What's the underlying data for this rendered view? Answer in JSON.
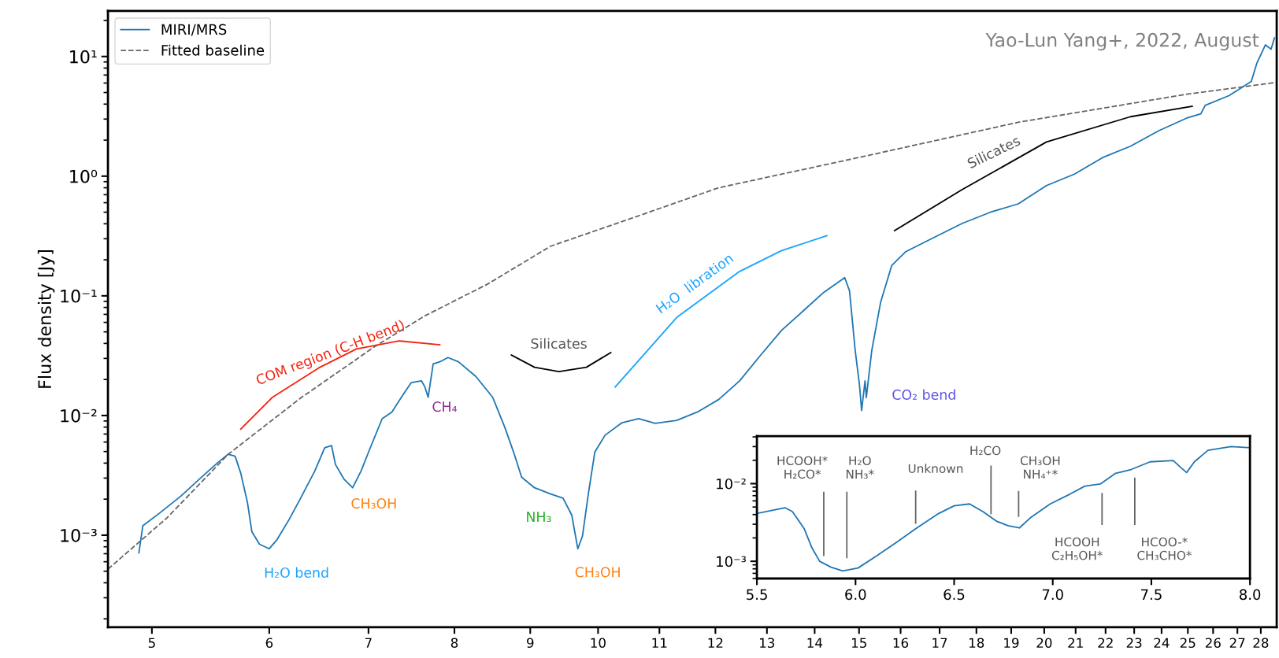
{
  "chart_data": [
    {
      "type": "line",
      "ylabel": "Flux density [Jy]",
      "log": "xy",
      "xlim": [
        4.67,
        28.7
      ],
      "ylim": [
        0.00017,
        24
      ],
      "xticks": [
        5,
        6,
        7,
        8,
        9,
        10,
        11,
        12,
        13,
        14,
        15,
        16,
        17,
        18,
        19,
        20,
        21,
        22,
        23,
        24,
        25,
        26,
        27,
        28
      ],
      "yticks": [
        {
          "value": 0.001,
          "label": "10⁻³"
        },
        {
          "value": 0.01,
          "label": "10⁻²"
        },
        {
          "value": 0.1,
          "label": "10⁻¹"
        },
        {
          "value": 1,
          "label": "10⁰"
        },
        {
          "value": 10,
          "label": "10¹"
        }
      ],
      "grid": false,
      "legend": "top left",
      "series": [
        {
          "name": "MIRI/MRS",
          "color": "#1f77b4",
          "x": [
            4.9,
            4.93,
            5.06,
            5.23,
            5.4,
            5.54,
            5.63,
            5.69,
            5.74,
            5.8,
            5.84,
            5.91,
            6.0,
            6.07,
            6.19,
            6.31,
            6.44,
            6.54,
            6.61,
            6.65,
            6.74,
            6.83,
            6.92,
            7.01,
            7.15,
            7.26,
            7.38,
            7.48,
            7.6,
            7.64,
            7.68,
            7.74,
            7.82,
            7.92,
            8.05,
            8.27,
            8.49,
            8.65,
            8.77,
            8.88,
            9.06,
            9.29,
            9.47,
            9.6,
            9.69,
            9.76,
            9.85,
            9.95,
            10.11,
            10.38,
            10.65,
            10.93,
            11.3,
            11.67,
            12.06,
            12.46,
            12.87,
            13.3,
            13.74,
            14.2,
            14.67,
            14.78,
            14.91,
            15.01,
            15.06,
            15.14,
            15.17,
            15.3,
            15.51,
            15.78,
            16.13,
            16.85,
            17.6,
            18.39,
            19.21,
            20.07,
            20.96,
            21.9,
            22.87,
            23.9,
            24.96,
            25.51,
            25.68,
            26.65,
            27.59,
            27.83,
            28.2,
            28.45,
            28.6
          ],
          "values": [
            0.00071,
            0.0012,
            0.00153,
            0.00212,
            0.00305,
            0.00405,
            0.00475,
            0.00457,
            0.0033,
            0.00188,
            0.00107,
            0.00084,
            0.00077,
            0.00091,
            0.00136,
            0.00212,
            0.00344,
            0.00537,
            0.0056,
            0.0039,
            0.00293,
            0.00249,
            0.00344,
            0.00515,
            0.0094,
            0.0107,
            0.0147,
            0.0188,
            0.0195,
            0.0174,
            0.0142,
            0.027,
            0.0281,
            0.0305,
            0.0281,
            0.0212,
            0.0142,
            0.008,
            0.00495,
            0.00305,
            0.00249,
            0.00221,
            0.00204,
            0.00147,
            0.00077,
            0.00098,
            0.00221,
            0.00495,
            0.00685,
            0.0087,
            0.0094,
            0.0086,
            0.0091,
            0.0107,
            0.0136,
            0.0195,
            0.0318,
            0.0515,
            0.074,
            0.107,
            0.142,
            0.11,
            0.035,
            0.018,
            0.011,
            0.0195,
            0.0141,
            0.035,
            0.088,
            0.179,
            0.234,
            0.307,
            0.402,
            0.499,
            0.587,
            0.835,
            1.04,
            1.43,
            1.78,
            2.4,
            3.06,
            3.32,
            3.9,
            4.71,
            6.18,
            8.8,
            12.5,
            11.5,
            14.3
          ]
        },
        {
          "name": "Fitted baseline",
          "color": "#666666",
          "line_style": "dashed",
          "x": [
            4.67,
            5.12,
            5.63,
            6.3,
            7.06,
            7.64,
            8.42,
            9.29,
            10.6,
            12.06,
            15.14,
            19.21,
            24.96,
            28.7
          ],
          "values": [
            0.00052,
            0.0014,
            0.00475,
            0.014,
            0.0373,
            0.068,
            0.125,
            0.26,
            0.457,
            0.8,
            1.47,
            2.82,
            4.84,
            6.08
          ]
        },
        {
          "color": "#f5230f",
          "x": [
            5.74,
            6.03,
            6.48,
            6.87,
            7.34,
            7.82
          ],
          "values": [
            0.0077,
            0.0142,
            0.025,
            0.036,
            0.042,
            0.039
          ]
        },
        {
          "color": "#000000",
          "x": [
            8.74,
            9.06,
            9.41,
            9.82,
            10.2
          ],
          "values": [
            0.032,
            0.0253,
            0.0233,
            0.0253,
            0.0336
          ]
        },
        {
          "color": "#1aa3ff",
          "x": [
            10.27,
            11.3,
            12.46,
            13.3,
            14.27
          ],
          "values": [
            0.0173,
            0.066,
            0.16,
            0.239,
            0.318
          ]
        },
        {
          "color": "#000000",
          "x": [
            15.85,
            17.6,
            20.07,
            22.87,
            25.17
          ],
          "values": [
            0.351,
            0.77,
            1.93,
            3.14,
            3.84
          ]
        }
      ],
      "annotations": [
        "Yao-Lun Yang+, 2022, August",
        "H₂O bend",
        "CH₃OH",
        "CH₄",
        "NH₃",
        "CH₃OH",
        "CO₂ bend",
        "COM region (C-H bend)",
        "Silicates",
        "H₂O  libration",
        "Silicates"
      ]
    },
    {
      "type": "line",
      "log": "y",
      "xlim": [
        5.5,
        8.0
      ],
      "ylim": [
        0.0006,
        0.041
      ],
      "xticks": [
        5.5,
        {
          "value": 6.0,
          "label": "6.0"
        },
        6.5,
        {
          "value": 7.0,
          "label": "7.0"
        },
        7.5,
        {
          "value": 8.0,
          "label": "8.0"
        }
      ],
      "yticks": [
        {
          "value": 0.001,
          "label": "10⁻³"
        },
        {
          "value": 0.01,
          "label": "10⁻²"
        }
      ],
      "grid": false,
      "series": [
        {
          "color": "#1f77b4",
          "x": [
            5.5,
            5.642,
            5.68,
            5.74,
            5.779,
            5.818,
            5.876,
            5.935,
            6.013,
            6.11,
            6.208,
            6.305,
            6.422,
            6.5,
            6.578,
            6.646,
            6.714,
            6.773,
            6.831,
            6.89,
            6.987,
            7.085,
            7.163,
            7.241,
            7.319,
            7.397,
            7.494,
            7.611,
            7.65,
            7.679,
            7.718,
            7.787,
            7.904,
            8.0
          ],
          "values": [
            0.00413,
            0.0049,
            0.00437,
            0.00262,
            0.00149,
            0.001,
            0.00084,
            0.00075,
            0.00082,
            0.00119,
            0.00176,
            0.00262,
            0.00413,
            0.00518,
            0.00548,
            0.00437,
            0.00329,
            0.00287,
            0.00269,
            0.00369,
            0.00548,
            0.00728,
            0.0093,
            0.0099,
            0.0136,
            0.0152,
            0.0191,
            0.0198,
            0.0161,
            0.0139,
            0.0191,
            0.0269,
            0.03,
            0.029
          ]
        },
        {
          "color": "#666666",
          "x": [
            5.839,
            5.839
          ],
          "values": [
            0.00119,
            0.0077
          ]
        },
        {
          "color": "#666666",
          "x": [
            5.956,
            5.956
          ],
          "values": [
            0.00112,
            0.0077
          ]
        },
        {
          "color": "#666666",
          "x": [
            6.305,
            6.305
          ],
          "values": [
            0.00311,
            0.00796
          ]
        },
        {
          "color": "#666666",
          "x": [
            6.687,
            6.687
          ],
          "values": [
            0.00413,
            0.0167
          ]
        },
        {
          "color": "#666666",
          "x": [
            6.827,
            6.827
          ],
          "values": [
            0.00381,
            0.00788
          ]
        },
        {
          "color": "#666666",
          "x": [
            7.25,
            7.25
          ],
          "values": [
            0.003,
            0.00745
          ]
        },
        {
          "color": "#666666",
          "x": [
            7.416,
            7.416
          ],
          "values": [
            0.003,
            0.0117
          ]
        }
      ],
      "annotations": [
        "HCOOH*\nH₂CO*",
        "H₂O\nNH₃*",
        "Unknown",
        "H₂CO",
        "CH₃OH\nNH₄⁺*",
        "HCOOH\nC₂H₅OH*",
        "HCOO-*\nCH₃CHO*"
      ]
    }
  ]
}
